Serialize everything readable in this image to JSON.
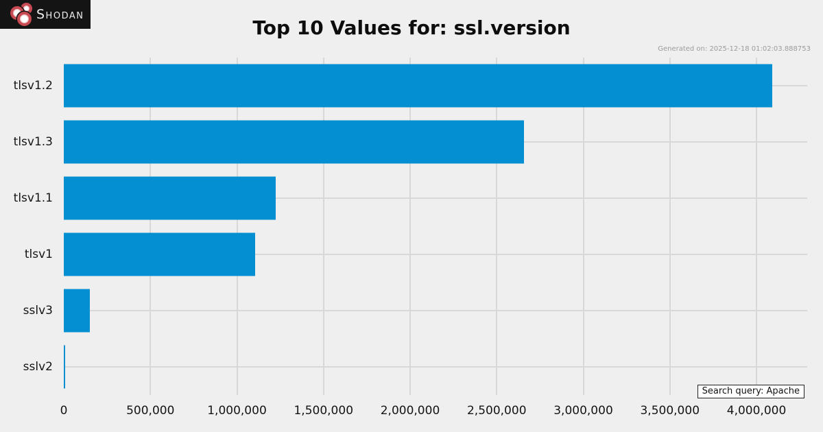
{
  "header": {
    "brand": "Shodan",
    "generated_on": "Generated on: 2025-12-18 01:02:03.888753"
  },
  "footer": {
    "search_query": "Search query: Apache"
  },
  "colors": {
    "background": "#efefef",
    "bar": "#048fd2",
    "gridline": "#d8d8d8",
    "logo_background": "#141414",
    "logo_red": "#c84a52",
    "text": "#141414",
    "muted_text": "#9b9b9b"
  },
  "chart_data": {
    "type": "bar",
    "orientation": "horizontal",
    "title": "Top 10 Values for: ssl.version",
    "xlabel": "",
    "ylabel": "",
    "categories": [
      "tlsv1.2",
      "tlsv1.3",
      "tlsv1.1",
      "tlsv1",
      "sslv3",
      "sslv2"
    ],
    "values": [
      4093000,
      2657000,
      1224000,
      1104000,
      152000,
      8000
    ],
    "xlim": [
      0,
      4293000
    ],
    "xticks": [
      0,
      500000,
      1000000,
      1500000,
      2000000,
      2500000,
      3000000,
      3500000,
      4000000
    ],
    "xtick_labels": [
      "0",
      "500,000",
      "1,000,000",
      "1,500,000",
      "2,000,000",
      "2,500,000",
      "3,000,000",
      "3,500,000",
      "4,000,000"
    ],
    "grid": true,
    "legend": false
  }
}
